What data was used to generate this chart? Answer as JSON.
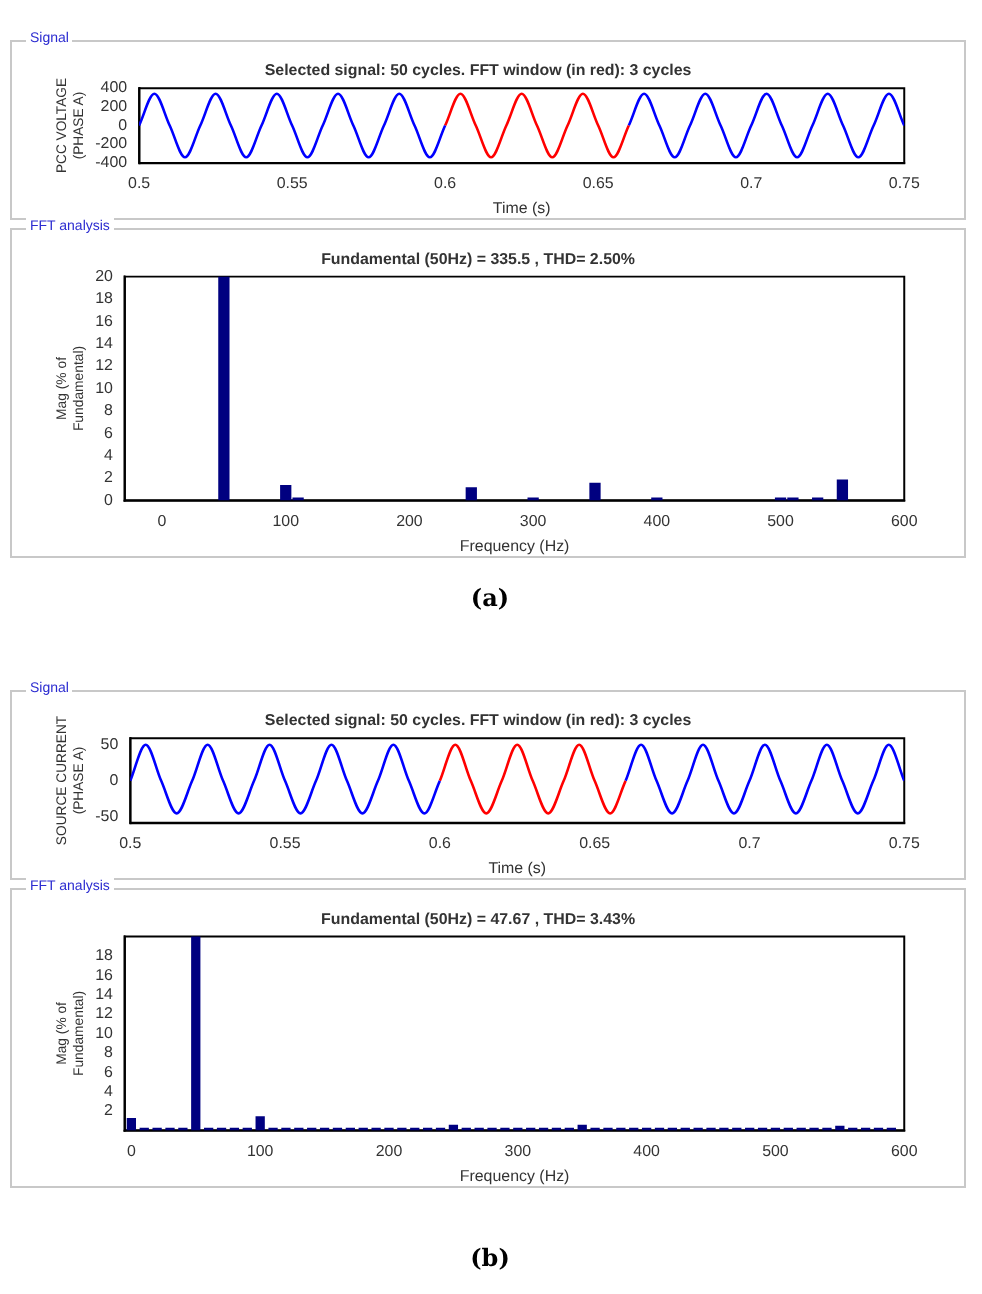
{
  "chart_data": [
    {
      "type": "line",
      "title": "Selected signal: 50 cycles. FFT window (in red): 3 cycles",
      "xlabel": "Time (s)",
      "ylabel": "PCC VOLTAGE (PHASE A)",
      "xlim": [
        0.5,
        0.75
      ],
      "xticks": [
        0.5,
        0.55,
        0.6,
        0.65,
        0.7,
        0.75
      ],
      "ylim": [
        -400,
        400
      ],
      "yticks": [
        -400,
        -200,
        0,
        200,
        400
      ],
      "grid": false,
      "legend": false,
      "line_style": "solid",
      "annotations": [
        "Signal"
      ],
      "series": [
        {
          "color": "#0000ff",
          "x": [
            0.5,
            0.505,
            0.51,
            0.515,
            0.52,
            0.525,
            0.53,
            0.535,
            0.54,
            0.545,
            0.55,
            0.555,
            0.56,
            0.565,
            0.57,
            0.575,
            0.58,
            0.585,
            0.59,
            0.595,
            0.6
          ],
          "values": [
            0,
            340,
            0,
            -340,
            0,
            340,
            0,
            -340,
            0,
            340,
            0,
            -340,
            0,
            340,
            0,
            -340,
            0,
            340,
            0,
            -340,
            0
          ]
        },
        {
          "color": "#ff0000",
          "x": [
            0.6,
            0.605,
            0.61,
            0.615,
            0.62,
            0.625,
            0.63,
            0.635,
            0.64,
            0.645,
            0.65,
            0.655,
            0.66
          ],
          "values": [
            0,
            340,
            0,
            -340,
            0,
            340,
            0,
            -340,
            0,
            340,
            0,
            -340,
            0
          ]
        },
        {
          "color": "#0000ff",
          "x": [
            0.66,
            0.665,
            0.67,
            0.675,
            0.68,
            0.685,
            0.69,
            0.695,
            0.7,
            0.705,
            0.71,
            0.715,
            0.72,
            0.725,
            0.73,
            0.735,
            0.74,
            0.745,
            0.75
          ],
          "values": [
            0,
            340,
            0,
            -340,
            0,
            340,
            0,
            -340,
            0,
            340,
            0,
            -340,
            0,
            340,
            0,
            -340,
            0,
            340,
            0
          ]
        }
      ]
    },
    {
      "type": "bar",
      "title": "Fundamental (50Hz) = 335.5 , THD= 2.50%",
      "xlabel": "Frequency (Hz)",
      "ylabel": "Mag (% of Fundamental)",
      "xlim": [
        -30,
        600
      ],
      "xticks": [
        0,
        100,
        200,
        300,
        400,
        500,
        600
      ],
      "ylim": [
        0,
        20
      ],
      "yticks": [
        0,
        2,
        4,
        6,
        8,
        10,
        12,
        14,
        16,
        18,
        20
      ],
      "grid": false,
      "legend": false,
      "annotations": [
        "FFT analysis",
        "(a)"
      ],
      "series": [
        {
          "color": "#000080",
          "x": [
            50,
            100,
            110,
            250,
            300,
            350,
            400,
            500,
            510,
            530,
            550
          ],
          "values": [
            20,
            1.3,
            0.2,
            1.1,
            0.2,
            1.5,
            0.2,
            0.2,
            0.2,
            0.2,
            1.8
          ]
        }
      ]
    },
    {
      "type": "line",
      "title": "Selected signal: 50 cycles. FFT window (in red): 3 cycles",
      "xlabel": "Time (s)",
      "ylabel": "SOURCE CURRENT (PHASE A)",
      "xlim": [
        0.5,
        0.75
      ],
      "xticks": [
        0.5,
        0.55,
        0.6,
        0.65,
        0.7,
        0.75
      ],
      "ylim": [
        -58,
        59
      ],
      "yticks": [
        -50,
        0,
        50
      ],
      "grid": false,
      "legend": false,
      "line_style": "solid",
      "annotations": [
        "Signal"
      ],
      "series": [
        {
          "color": "#0000ff",
          "x": [
            0.5,
            0.505,
            0.51,
            0.515,
            0.52,
            0.525,
            0.53,
            0.535,
            0.54,
            0.545,
            0.55,
            0.555,
            0.56,
            0.565,
            0.57,
            0.575,
            0.58,
            0.585,
            0.59,
            0.595,
            0.6
          ],
          "values": [
            0,
            50,
            0,
            -45,
            0,
            50,
            0,
            -45,
            0,
            50,
            0,
            -45,
            0,
            50,
            0,
            -45,
            0,
            50,
            0,
            -45,
            0
          ]
        },
        {
          "color": "#ff0000",
          "x": [
            0.6,
            0.605,
            0.61,
            0.615,
            0.62,
            0.625,
            0.63,
            0.635,
            0.64,
            0.645,
            0.65,
            0.655,
            0.66
          ],
          "values": [
            0,
            50,
            0,
            -45,
            0,
            50,
            0,
            -45,
            0,
            50,
            0,
            -45,
            0
          ]
        },
        {
          "color": "#0000ff",
          "x": [
            0.66,
            0.665,
            0.67,
            0.675,
            0.68,
            0.685,
            0.69,
            0.695,
            0.7,
            0.705,
            0.71,
            0.715,
            0.72,
            0.725,
            0.73,
            0.735,
            0.74,
            0.745,
            0.75
          ],
          "values": [
            0,
            50,
            0,
            -45,
            0,
            50,
            0,
            -45,
            0,
            50,
            0,
            -45,
            0,
            50,
            0,
            -45,
            0,
            50,
            0
          ]
        }
      ]
    },
    {
      "type": "bar",
      "title": "Fundamental (50Hz) = 47.67 , THD= 3.43%",
      "xlabel": "Frequency (Hz)",
      "ylabel": "Mag (% of Fundamental)",
      "xlim": [
        -5,
        600
      ],
      "xticks": [
        0,
        100,
        200,
        300,
        400,
        500,
        600
      ],
      "ylim": [
        0,
        20
      ],
      "yticks": [
        2,
        4,
        6,
        8,
        10,
        12,
        14,
        16,
        18
      ],
      "grid": false,
      "legend": false,
      "annotations": [
        "FFT analysis",
        "(b)"
      ],
      "series": [
        {
          "color": "#000080",
          "x": [
            0,
            10,
            20,
            30,
            40,
            50,
            60,
            70,
            80,
            90,
            100,
            110,
            120,
            130,
            140,
            150,
            160,
            170,
            180,
            190,
            200,
            210,
            220,
            230,
            240,
            250,
            260,
            270,
            280,
            290,
            300,
            310,
            320,
            330,
            340,
            350,
            360,
            370,
            380,
            390,
            400,
            410,
            420,
            430,
            440,
            450,
            460,
            470,
            480,
            490,
            500,
            510,
            520,
            530,
            540,
            550,
            560,
            570,
            580,
            590
          ],
          "values": [
            1.2,
            0.2,
            0.2,
            0.2,
            0.2,
            20,
            0.2,
            0.2,
            0.2,
            0.2,
            1.4,
            0.2,
            0.2,
            0.2,
            0.2,
            0.2,
            0.2,
            0.2,
            0.2,
            0.2,
            0.2,
            0.2,
            0.2,
            0.2,
            0.2,
            0.5,
            0.2,
            0.2,
            0.2,
            0.2,
            0.2,
            0.2,
            0.2,
            0.2,
            0.2,
            0.5,
            0.2,
            0.2,
            0.2,
            0.2,
            0.2,
            0.2,
            0.2,
            0.2,
            0.2,
            0.2,
            0.2,
            0.2,
            0.2,
            0.2,
            0.2,
            0.2,
            0.2,
            0.2,
            0.2,
            0.4,
            0.2,
            0.2,
            0.2,
            0.2
          ]
        }
      ]
    }
  ]
}
